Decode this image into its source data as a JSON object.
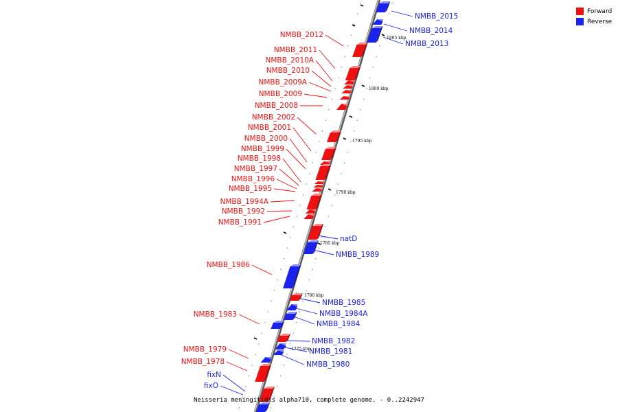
{
  "colors": {
    "forward": "#ee1111",
    "reverse": "#1a22ee",
    "backbone": "#999999"
  },
  "legend": [
    {
      "label": "Forward",
      "strand": "forward",
      "color": "#ee1111"
    },
    {
      "label": "Reverse",
      "strand": "reverse",
      "color": "#1a22ee"
    }
  ],
  "caption": "Neisseria meningitidis alpha710, complete genome. - 0..2242947",
  "scale_labels": [
    "1805 kbp",
    "1800 kbp",
    "1795 kbp",
    "1790 kbp",
    "1785 kbp",
    "1780 kbp",
    "1775 kbp"
  ],
  "genes": [
    {
      "name": "NMBB_2015",
      "strand": "reverse"
    },
    {
      "name": "NMBB_2014",
      "strand": "reverse"
    },
    {
      "name": "NMBB_2013",
      "strand": "reverse"
    },
    {
      "name": "NMBB_2012",
      "strand": "forward"
    },
    {
      "name": "NMBB_2011",
      "strand": "forward"
    },
    {
      "name": "NMBB_2010A",
      "strand": "forward"
    },
    {
      "name": "NMBB_2010",
      "strand": "forward"
    },
    {
      "name": "NMBB_2009A",
      "strand": "forward"
    },
    {
      "name": "NMBB_2009",
      "strand": "forward"
    },
    {
      "name": "NMBB_2008",
      "strand": "forward"
    },
    {
      "name": "NMBB_2002",
      "strand": "forward"
    },
    {
      "name": "NMBB_2001",
      "strand": "forward"
    },
    {
      "name": "NMBB_2000",
      "strand": "forward"
    },
    {
      "name": "NMBB_1999",
      "strand": "forward"
    },
    {
      "name": "NMBB_1998",
      "strand": "forward"
    },
    {
      "name": "NMBB_1997",
      "strand": "forward"
    },
    {
      "name": "NMBB_1996",
      "strand": "forward"
    },
    {
      "name": "NMBB_1995",
      "strand": "forward"
    },
    {
      "name": "NMBB_1994A",
      "strand": "forward"
    },
    {
      "name": "NMBB_1992",
      "strand": "forward"
    },
    {
      "name": "NMBB_1991",
      "strand": "forward"
    },
    {
      "name": "natD",
      "strand": "reverse"
    },
    {
      "name": "NMBB_1989",
      "strand": "reverse"
    },
    {
      "name": "NMBB_1986",
      "strand": "forward"
    },
    {
      "name": "NMBB_1985",
      "strand": "reverse"
    },
    {
      "name": "NMBB_1984A",
      "strand": "reverse"
    },
    {
      "name": "NMBB_1984",
      "strand": "reverse"
    },
    {
      "name": "NMBB_1983",
      "strand": "forward"
    },
    {
      "name": "NMBB_1982",
      "strand": "reverse"
    },
    {
      "name": "NMBB_1981",
      "strand": "reverse"
    },
    {
      "name": "NMBB_1980",
      "strand": "reverse"
    },
    {
      "name": "NMBB_1979",
      "strand": "forward"
    },
    {
      "name": "NMBB_1978",
      "strand": "forward"
    },
    {
      "name": "fixN",
      "strand": "reverse"
    },
    {
      "name": "fixO",
      "strand": "reverse"
    }
  ]
}
